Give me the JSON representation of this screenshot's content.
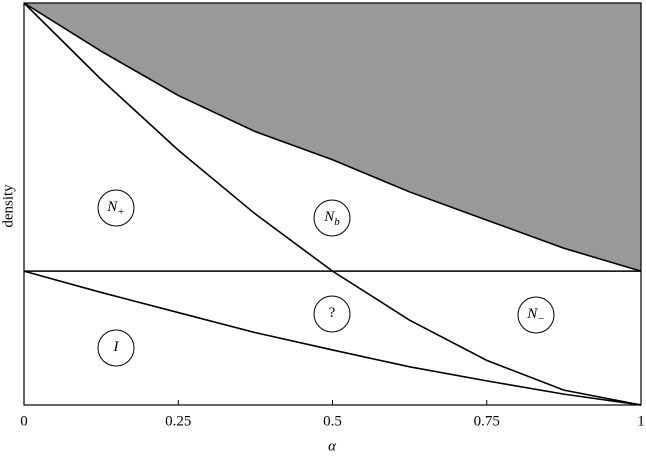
{
  "chart_data": {
    "type": "phase",
    "x_label": "α",
    "y_label": "density",
    "x": [
      0,
      0.125,
      0.25,
      0.375,
      0.5,
      0.625,
      0.75,
      0.875,
      1
    ],
    "series": [
      {
        "color": "#999999",
        "shaded_above": true,
        "values": [
          1,
          0.88,
          0.77,
          0.68,
          0.61,
          0.53,
          0.46,
          0.39,
          0.333
        ]
      },
      {
        "color": "#000000",
        "values": [
          1,
          0.81,
          0.634,
          0.475,
          0.333,
          0.211,
          0.111,
          0.037,
          0
        ]
      },
      {
        "color": "#000000",
        "values": [
          0.333,
          0.28,
          0.23,
          0.18,
          0.137,
          0.095,
          0.06,
          0.027,
          0
        ]
      }
    ],
    "reference_line": 0.333,
    "xlim": [
      0,
      1
    ],
    "ylim": [
      0,
      1
    ],
    "xticks": [
      0,
      0.25,
      0.5,
      0.75,
      1
    ],
    "annotations": [
      {
        "text": "N",
        "sub": "+"
      },
      {
        "text": "N",
        "sub": "b"
      },
      {
        "text": "?"
      },
      {
        "text": "N",
        "sub": "−"
      },
      {
        "text": "I"
      }
    ]
  }
}
